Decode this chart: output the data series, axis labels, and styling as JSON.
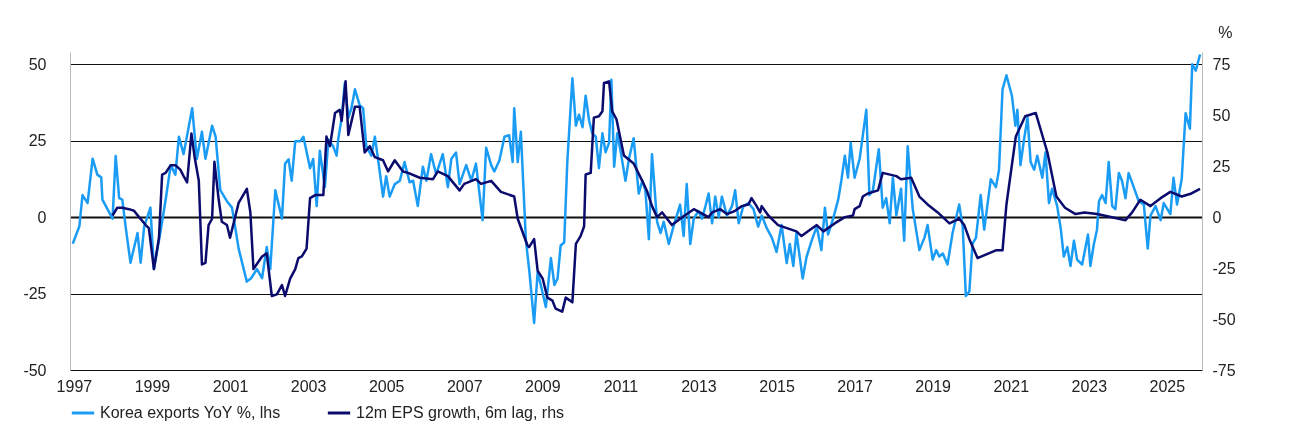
{
  "chart_data": {
    "type": "line",
    "xlim": [
      1996.9,
      2025.9
    ],
    "xticks": [
      1997,
      1999,
      2001,
      2003,
      2005,
      2007,
      2009,
      2011,
      2013,
      2015,
      2017,
      2019,
      2021,
      2023,
      2025
    ],
    "ylim": [
      -50,
      54
    ],
    "yticks": [
      -50,
      -25,
      0,
      25,
      50
    ],
    "y2lim": [
      -75,
      81
    ],
    "y2ticks": [
      -75,
      -50,
      -25,
      0,
      25,
      50,
      75
    ],
    "y2label": "%",
    "grid": "y",
    "legend": "bottom",
    "series": [
      {
        "name": "Korea exports YoY %, lhs",
        "color": "#1a9cf5",
        "x": [
          1996.97,
          1997.14,
          1997.22,
          1997.35,
          1997.48,
          1997.6,
          1997.7,
          1997.73,
          1997.99,
          1998.07,
          1998.16,
          1998.24,
          1998.33,
          1998.45,
          1998.63,
          1998.71,
          1998.8,
          1998.96,
          1999.05,
          1999.22,
          1999.35,
          1999.48,
          1999.6,
          1999.69,
          1999.81,
          2000.03,
          2000.15,
          2000.28,
          2000.37,
          2000.54,
          2000.63,
          2000.75,
          2000.92,
          2001.05,
          2001.22,
          2001.43,
          2001.54,
          2001.69,
          2001.82,
          2001.94,
          2002.03,
          2002.16,
          2002.33,
          2002.41,
          2002.5,
          2002.58,
          2002.67,
          2002.8,
          2002.88,
          2003.05,
          2003.13,
          2003.22,
          2003.3,
          2003.43,
          2003.52,
          2003.64,
          2003.73,
          2003.77,
          2003.86,
          2003.94,
          2004.03,
          2004.11,
          2004.2,
          2004.32,
          2004.41,
          2004.49,
          2004.62,
          2004.71,
          2004.79,
          2004.92,
          2005.0,
          2005.09,
          2005.22,
          2005.35,
          2005.47,
          2005.6,
          2005.69,
          2005.81,
          2005.94,
          2006.03,
          2006.15,
          2006.28,
          2006.45,
          2006.58,
          2006.67,
          2006.79,
          2006.88,
          2007.05,
          2007.18,
          2007.3,
          2007.47,
          2007.56,
          2007.69,
          2007.77,
          2007.9,
          2008.03,
          2008.15,
          2008.24,
          2008.28,
          2008.37,
          2008.45,
          2008.58,
          2008.67,
          2008.79,
          2008.88,
          2008.97,
          2009.09,
          2009.22,
          2009.31,
          2009.39,
          2009.47,
          2009.56,
          2009.64,
          2009.77,
          2009.86,
          2009.94,
          2010.03,
          2010.11,
          2010.2,
          2010.28,
          2010.37,
          2010.45,
          2010.54,
          2010.62,
          2010.71,
          2010.77,
          2010.84,
          2010.92,
          2011.01,
          2011.13,
          2011.22,
          2011.34,
          2011.47,
          2011.56,
          2011.64,
          2011.73,
          2011.81,
          2011.94,
          2012.03,
          2012.11,
          2012.24,
          2012.37,
          2012.53,
          2012.62,
          2012.7,
          2012.79,
          2012.88,
          2013.0,
          2013.09,
          2013.18,
          2013.26,
          2013.35,
          2013.43,
          2013.52,
          2013.6,
          2013.73,
          2013.86,
          2013.94,
          2014.03,
          2014.15,
          2014.28,
          2014.41,
          2014.53,
          2014.62,
          2014.75,
          2014.88,
          2015.0,
          2015.13,
          2015.26,
          2015.34,
          2015.43,
          2015.51,
          2015.67,
          2015.77,
          2015.9,
          2016.03,
          2016.15,
          2016.24,
          2016.32,
          2016.45,
          2016.58,
          2016.66,
          2016.75,
          2016.83,
          2016.9,
          2017.0,
          2017.13,
          2017.3,
          2017.38,
          2017.47,
          2017.62,
          2017.72,
          2017.81,
          2017.9,
          2017.98,
          2018.07,
          2018.19,
          2018.27,
          2018.36,
          2018.49,
          2018.66,
          2018.79,
          2018.87,
          2019.0,
          2019.09,
          2019.17,
          2019.26,
          2019.38,
          2019.51,
          2019.68,
          2019.77,
          2019.85,
          2019.94,
          2020.02,
          2020.11,
          2020.23,
          2020.32,
          2020.49,
          2020.62,
          2020.7,
          2020.79,
          2020.89,
          2021.03,
          2021.12,
          2021.17,
          2021.25,
          2021.34,
          2021.43,
          2021.51,
          2021.6,
          2021.68,
          2021.81,
          2021.89,
          2021.98,
          2022.06,
          2022.19,
          2022.28,
          2022.36,
          2022.45,
          2022.53,
          2022.62,
          2022.7,
          2022.83,
          2022.98,
          2023.04,
          2023.13,
          2023.21,
          2023.26,
          2023.34,
          2023.43,
          2023.51,
          2023.6,
          2023.68,
          2023.77,
          2023.85,
          2023.94,
          2024.02,
          2024.15,
          2024.28,
          2024.41,
          2024.51,
          2024.58,
          2024.71,
          2024.84,
          2024.92,
          2025.09,
          2025.17,
          2025.26,
          2025.38,
          2025.48,
          2025.59,
          2025.65,
          2025.74,
          2025.85
        ],
        "values": [
          -8.7,
          -3,
          7.2,
          4.6,
          19.1,
          13.9,
          13,
          5.7,
          -0.5,
          20,
          6.2,
          5.7,
          -3.6,
          -14.9,
          -5.2,
          -14.9,
          -3.1,
          3.1,
          -17,
          -4.6,
          5.7,
          17,
          13.9,
          26.3,
          20.6,
          35.6,
          19.1,
          27.9,
          19.1,
          29.9,
          26.3,
          8.8,
          5.2,
          3.1,
          -10.3,
          -21.1,
          -20,
          -17,
          -20,
          -9.8,
          -17,
          8.8,
          -0.5,
          17.5,
          18.9,
          11.9,
          24.8,
          24.8,
          26.3,
          16,
          19,
          3.6,
          21.7,
          9.8,
          25.3,
          23.2,
          20.1,
          25.3,
          32.5,
          43.9,
          32.5,
          35.6,
          41.8,
          36.6,
          35.6,
          23.2,
          20.1,
          26.3,
          19.1,
          6.7,
          13.4,
          6.7,
          10.8,
          11.9,
          18,
          11.4,
          11.9,
          3.6,
          16.5,
          11.9,
          20.6,
          14,
          20.6,
          9.8,
          19.1,
          21.1,
          10.8,
          17,
          11.9,
          17.5,
          -1,
          22.7,
          17,
          14.9,
          18.5,
          26.3,
          26.8,
          18,
          35.6,
          18,
          27.9,
          -7.7,
          -18,
          -34.6,
          -18,
          -22.7,
          -29.4,
          -13.4,
          -22.2,
          -20.1,
          -9.3,
          -8.3,
          18,
          45.4,
          29.9,
          33.5,
          29.4,
          39.7,
          31.5,
          27.4,
          26.3,
          16,
          27.4,
          21.2,
          24.3,
          44.9,
          16.5,
          27.4,
          21.2,
          11.9,
          19.1,
          25.8,
          7.7,
          11.9,
          8.8,
          -7.2,
          20.6,
          -1.5,
          -5.2,
          -1.5,
          -8.8,
          -2.6,
          4.1,
          -6.2,
          10.8,
          -8.8,
          -0.5,
          2,
          -0.5,
          3.6,
          7.7,
          -2,
          6.7,
          0,
          6.7,
          0.5,
          3.6,
          8.8,
          -2,
          3.6,
          4.6,
          2.6,
          -3.1,
          0.5,
          -3.6,
          -6.7,
          -11.4,
          -2.6,
          -15,
          -8.8,
          -16,
          -5.2,
          -20.1,
          -13,
          -7.7,
          -3.1,
          -10.8,
          3.1,
          -5.7,
          -0.5,
          5.7,
          11.9,
          20.1,
          12.9,
          24.3,
          12.9,
          19.1,
          35.1,
          7.2,
          8.8,
          22.2,
          3.1,
          6.2,
          -2,
          12.9,
          0.5,
          9.3,
          -7.7,
          23.2,
          2.6,
          -10.8,
          -6.7,
          -2.6,
          -13.9,
          -10.8,
          -12.9,
          -11.9,
          -15.5,
          -5.2,
          4.1,
          -3.1,
          -25.8,
          -24.3,
          -8.8,
          -6.7,
          7.2,
          -4.1,
          12.4,
          9.8,
          15.5,
          41.8,
          46.4,
          39.7,
          29.9,
          35.1,
          17,
          25.3,
          32.5,
          18,
          15.5,
          20.1,
          12.9,
          21.2,
          4.6,
          9.3,
          3.6,
          -3.6,
          -12.9,
          -9.8,
          -16,
          -7.7,
          -13.9,
          -15.5,
          -5.7,
          -16,
          -8.8,
          -4.1,
          5.2,
          7.2,
          4.6,
          18,
          3.6,
          2.6,
          14.4,
          11.9,
          6.2,
          14.4,
          9.8,
          5.2,
          4.1,
          -10.3,
          0.5,
          3.6,
          -1,
          4.6,
          1,
          12.9,
          4.1,
          12.4,
          34,
          28.9,
          50,
          47.9,
          53.2
        ]
      },
      {
        "name": "12m EPS growth, 6m lag, rhs",
        "color": "#0b0b6e",
        "axis": "y2",
        "x": [
          1997.99,
          1998.11,
          1998.24,
          1998.41,
          1998.54,
          1998.67,
          1998.84,
          1998.92,
          1999.05,
          1999.18,
          1999.26,
          1999.35,
          1999.48,
          1999.6,
          1999.73,
          1999.81,
          1999.9,
          2000.01,
          2000.1,
          2000.2,
          2000.28,
          2000.37,
          2000.45,
          2000.54,
          2000.6,
          2000.71,
          2000.79,
          2000.92,
          2001.0,
          2001.22,
          2001.43,
          2001.52,
          2001.6,
          2001.82,
          2001.94,
          2002.07,
          2002.2,
          2002.33,
          2002.41,
          2002.54,
          2002.67,
          2002.75,
          2002.84,
          2002.96,
          2003.05,
          2003.18,
          2003.39,
          2003.47,
          2003.56,
          2003.69,
          2003.81,
          2003.86,
          2003.96,
          2004.03,
          2004.2,
          2004.32,
          2004.45,
          2004.58,
          2004.71,
          2004.92,
          2005.05,
          2005.22,
          2005.43,
          2005.56,
          2005.86,
          2006.2,
          2006.32,
          2006.58,
          2006.88,
          2007.0,
          2007.3,
          2007.43,
          2007.69,
          2007.94,
          2008.28,
          2008.37,
          2008.62,
          2008.66,
          2008.79,
          2008.88,
          2009.01,
          2009.13,
          2009.26,
          2009.34,
          2009.51,
          2009.6,
          2009.77,
          2009.86,
          2009.98,
          2010.07,
          2010.11,
          2010.24,
          2010.32,
          2010.45,
          2010.54,
          2010.58,
          2010.71,
          2010.79,
          2010.9,
          2011.09,
          2011.34,
          2011.56,
          2011.69,
          2011.81,
          2011.94,
          2012.07,
          2012.32,
          2012.53,
          2012.88,
          2013.26,
          2013.35,
          2013.56,
          2013.73,
          2013.94,
          2014.11,
          2014.28,
          2014.36,
          2014.49,
          2014.58,
          2014.62,
          2014.79,
          2015.04,
          2015.51,
          2015.64,
          2016.03,
          2016.2,
          2016.49,
          2016.75,
          2016.96,
          2017.0,
          2017.13,
          2017.21,
          2017.34,
          2017.6,
          2017.72,
          2018.07,
          2018.19,
          2018.45,
          2018.66,
          2018.87,
          2019.13,
          2019.43,
          2019.68,
          2019.81,
          2019.94,
          2020.15,
          2020.62,
          2020.79,
          2020.89,
          2021.13,
          2021.37,
          2021.64,
          2021.94,
          2022.17,
          2022.39,
          2022.66,
          2022.89,
          2023.21,
          2023.39,
          2023.94,
          2024.11,
          2024.32,
          2024.58,
          2024.84,
          2025.09,
          2025.38,
          2025.63,
          2025.85
        ],
        "values": [
          0.8,
          4.6,
          4.6,
          3.9,
          3.1,
          0,
          -3.9,
          -5.4,
          -25.5,
          -10,
          20.9,
          21.7,
          25.5,
          25.5,
          23.2,
          20.1,
          17,
          41,
          28.6,
          17.8,
          -23.2,
          -22.4,
          -3.9,
          -0.8,
          27.1,
          8.5,
          -2.3,
          -3.9,
          -10.1,
          7,
          13.9,
          2.3,
          -25.5,
          -19.3,
          -17.8,
          -38.7,
          -37.9,
          -33.3,
          -38.7,
          -30.2,
          -25.5,
          -20.1,
          -19.3,
          -15.5,
          9.3,
          10.8,
          10.8,
          39.5,
          34.8,
          51.1,
          52.6,
          47.2,
          66.6,
          40.3,
          54.2,
          54.2,
          31.7,
          34.8,
          29.4,
          27.9,
          22.4,
          27.9,
          22.4,
          21.7,
          19.3,
          18.6,
          22.4,
          20.1,
          13.1,
          16.3,
          18.6,
          16.3,
          17.8,
          12.4,
          10.1,
          -0.8,
          -13.9,
          -14.7,
          -10.8,
          -26.3,
          -30.2,
          -39.5,
          -41,
          -44.9,
          -46.4,
          -39.5,
          -41.8,
          -13.1,
          -9.3,
          -4.6,
          20.9,
          21.7,
          48.8,
          49.5,
          51.9,
          65.8,
          66.6,
          51.9,
          48,
          30.2,
          26.3,
          17.8,
          12.4,
          5.4,
          0,
          2.3,
          -3.9,
          -0.8,
          3.9,
          0,
          2.3,
          3.9,
          1.5,
          3.1,
          5.4,
          6.2,
          9.3,
          5.4,
          2.3,
          5.4,
          0.8,
          -3.9,
          -7,
          -9.3,
          -3.9,
          -7,
          -3.1,
          0,
          0.8,
          3.9,
          5.4,
          10.1,
          11.6,
          13.1,
          21.7,
          20.1,
          18.6,
          19.3,
          10.1,
          6.2,
          2.3,
          -3.1,
          -0.8,
          -3.9,
          -10.8,
          -20.1,
          -16.3,
          -16.3,
          6.2,
          39.5,
          49.5,
          51.1,
          31.7,
          10.1,
          4.6,
          1.5,
          2.3,
          1.5,
          0.8,
          -1.5,
          2.3,
          8.5,
          5.4,
          9.3,
          12.4,
          10.1,
          11.6,
          13.9
        ]
      }
    ]
  }
}
